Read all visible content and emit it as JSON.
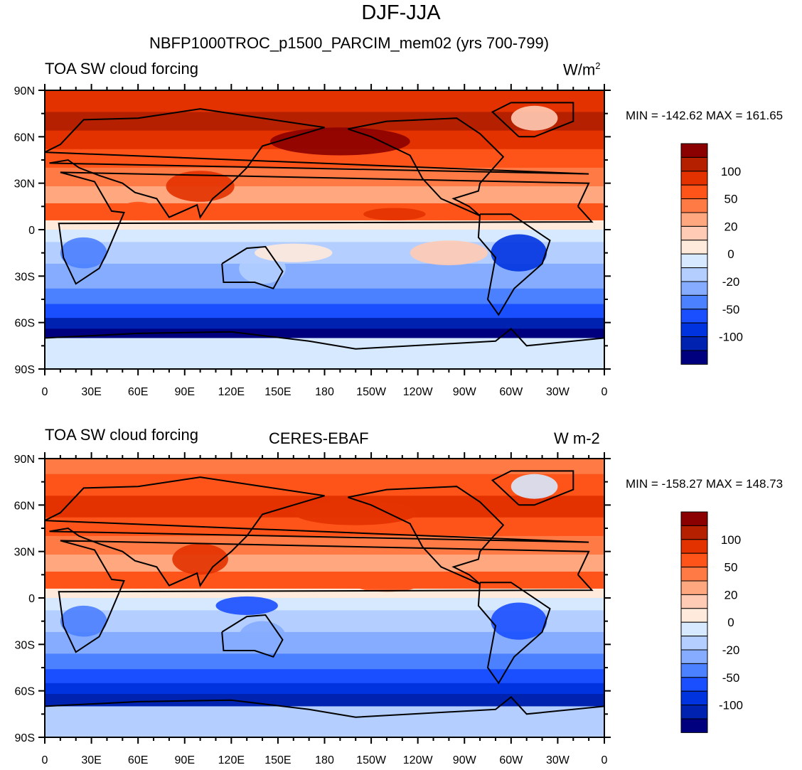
{
  "title": "DJF-JJA",
  "lat_labels": [
    "90N",
    "60N",
    "30N",
    "0",
    "30S",
    "60S",
    "90S"
  ],
  "lon_labels": [
    "0",
    "30E",
    "60E",
    "90E",
    "120E",
    "150E",
    "180",
    "150W",
    "120W",
    "90W",
    "60W",
    "30W",
    "0"
  ],
  "colorbar": {
    "colors": [
      "#8b0000",
      "#b52100",
      "#e33200",
      "#ff5419",
      "#ff7a45",
      "#ffa77f",
      "#ffcbb4",
      "#ffeadb",
      "#d6e9ff",
      "#b3ceff",
      "#86acff",
      "#4b80ff",
      "#1a4fff",
      "#0033e0",
      "#0022b0",
      "#00007f"
    ],
    "labels": [
      "100",
      "50",
      "20",
      "0",
      "-20",
      "-50",
      "-100"
    ]
  },
  "panels": [
    {
      "left_title": "TOA SW cloud forcing",
      "center_title": "NBFP1000TROC_p1500_PARCIM_mem02 (yrs 700-799)",
      "units": "W/m",
      "units_sup": "2",
      "min_max": "MIN = -142.62 MAX = 161.65"
    },
    {
      "left_title": "TOA SW cloud forcing",
      "center_title": "CERES-EBAF",
      "units": "W m-2",
      "units_sup": "",
      "min_max": "MIN = -158.27 MAX = 148.73"
    }
  ]
}
